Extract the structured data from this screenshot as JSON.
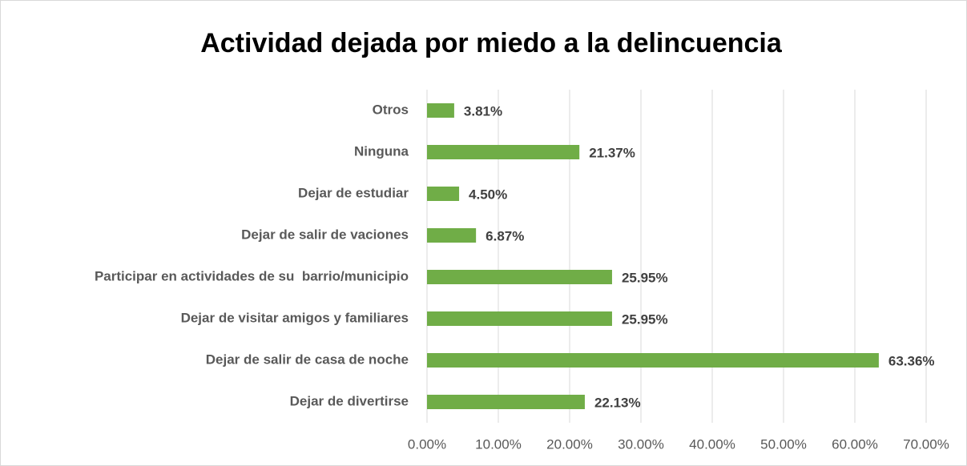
{
  "chart_data": {
    "type": "bar",
    "orientation": "horizontal",
    "title": "Actividad dejada por miedo a la delincuencia",
    "categories": [
      "Otros",
      "Ninguna",
      "Dejar de estudiar",
      "Dejar de salir de vaciones",
      "Participar en actividades de su  barrio/municipio",
      "Dejar de visitar amigos y familiares",
      "Dejar de salir de casa de noche",
      "Dejar de divertirse"
    ],
    "values": [
      3.81,
      21.37,
      4.5,
      6.87,
      25.95,
      25.95,
      63.36,
      22.13
    ],
    "value_labels": [
      "3.81%",
      "21.37%",
      "4.50%",
      "6.87%",
      "25.95%",
      "25.95%",
      "63.36%",
      "22.13%"
    ],
    "color": "#70ad47",
    "xlim": [
      0,
      70
    ],
    "xticks": [
      {
        "value": 0,
        "label": "0.00%"
      },
      {
        "value": 10,
        "label": "10.00%"
      },
      {
        "value": 20,
        "label": "20.00%"
      },
      {
        "value": 30,
        "label": "30.00%"
      },
      {
        "value": 40,
        "label": "40.00%"
      },
      {
        "value": 50,
        "label": "50.00%"
      },
      {
        "value": 60,
        "label": "60.00%"
      },
      {
        "value": 70,
        "label": "70.00%"
      }
    ],
    "grid": true
  }
}
